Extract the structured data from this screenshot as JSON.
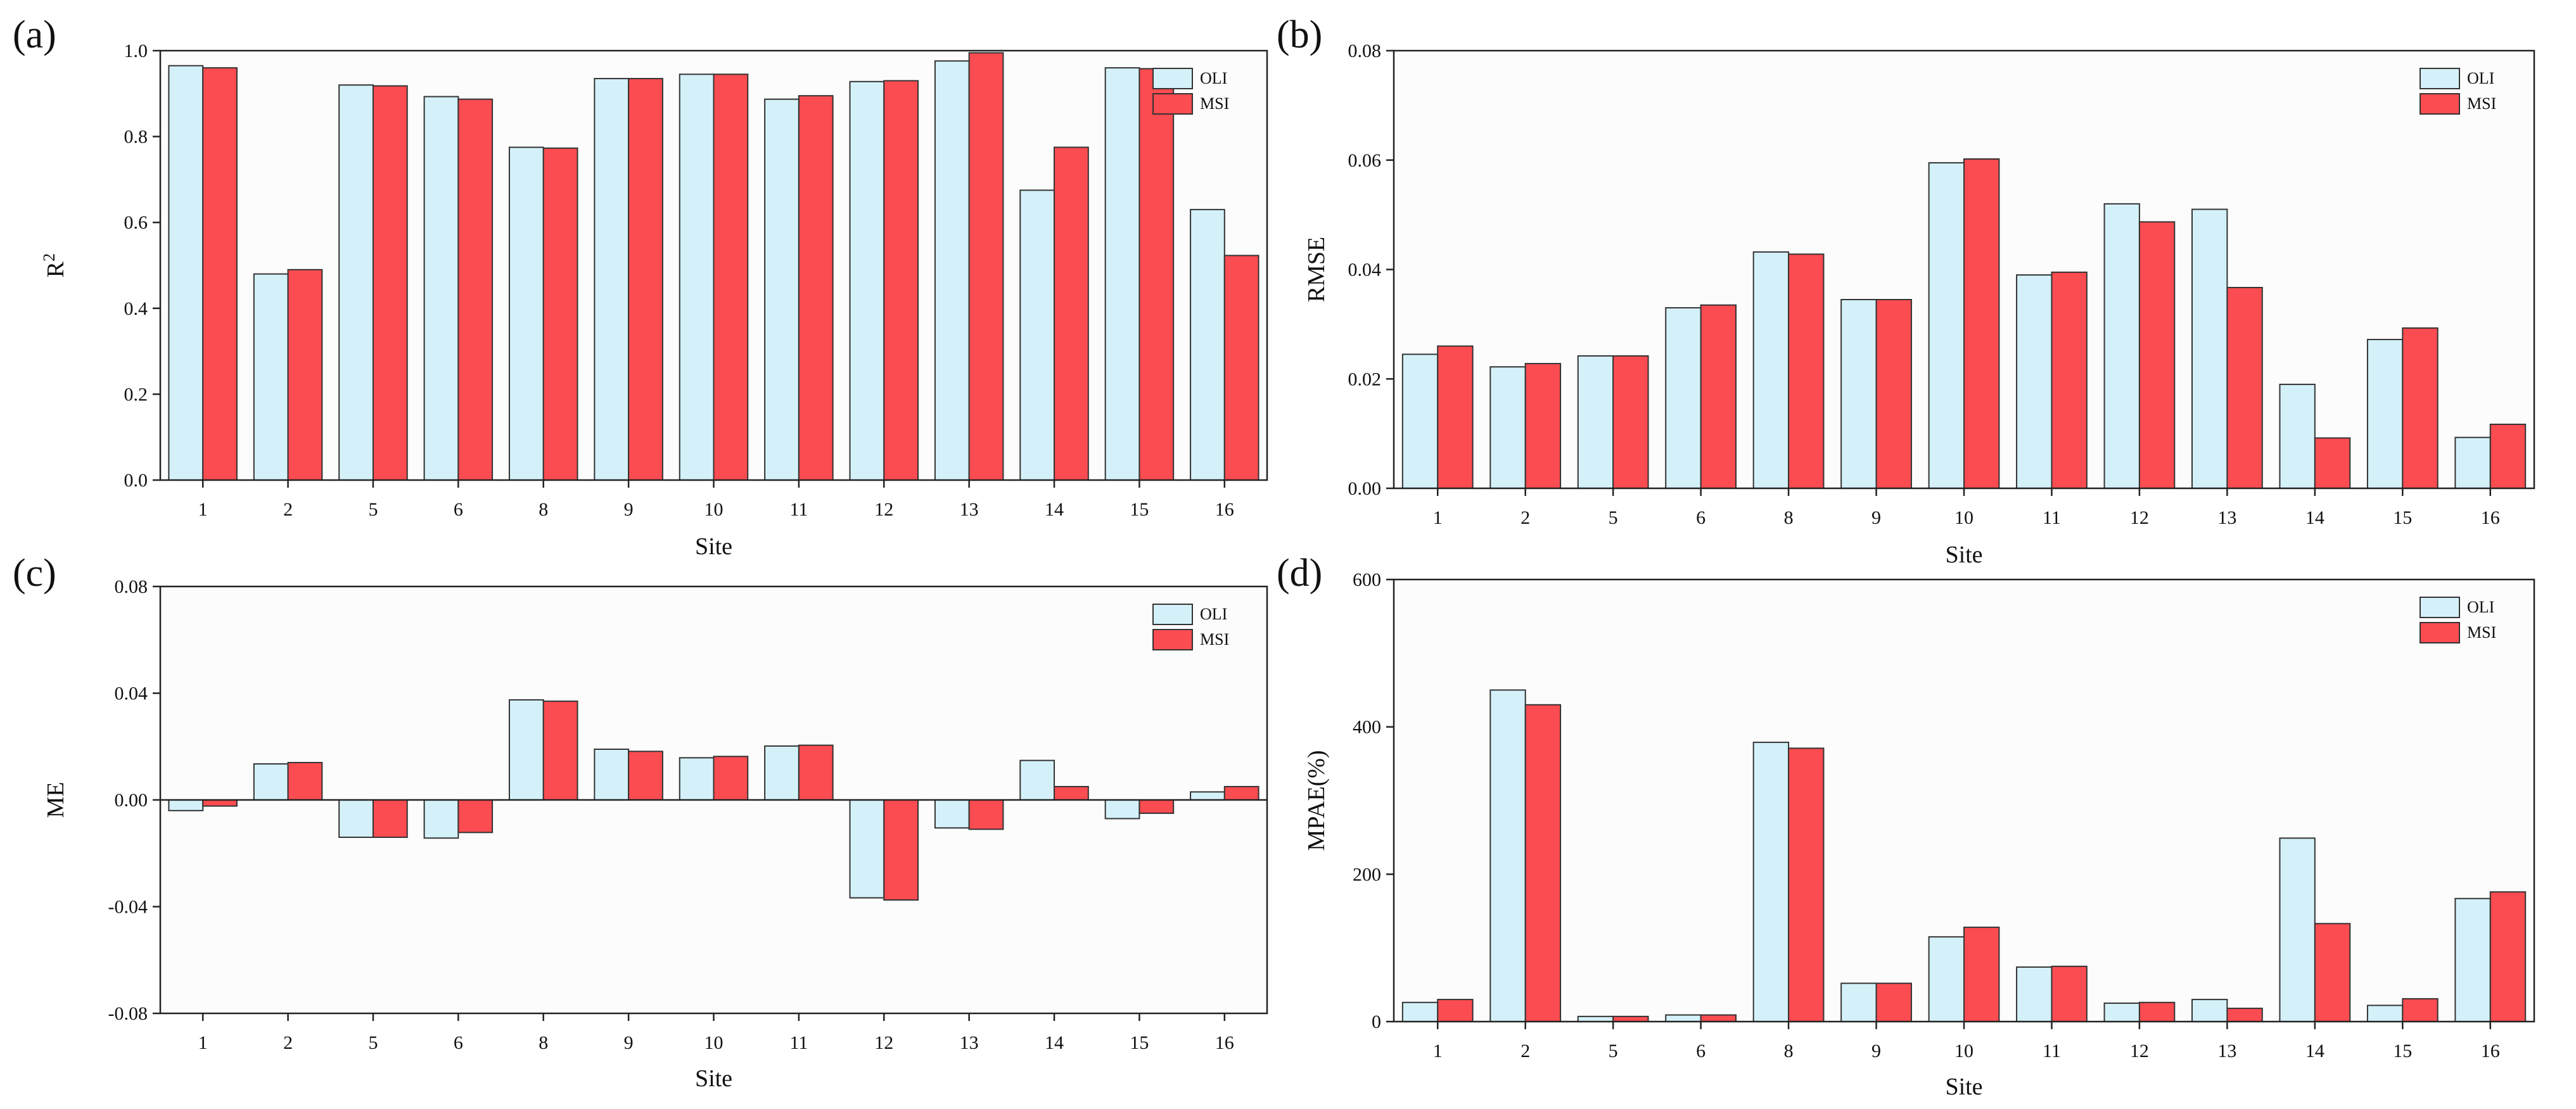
{
  "colors": {
    "oli": "#d4f1f9",
    "msi": "#fb4c51",
    "plot_bg": "#fcfcfc"
  },
  "chart_data": [
    {
      "id": "a",
      "panel_label": "(a)",
      "type": "bar",
      "xlabel": "Site",
      "ylabel": "R",
      "ylabel_sup": "2",
      "ylim": [
        0,
        1.0
      ],
      "yticks": [
        "0.0",
        "0.2",
        "0.4",
        "0.6",
        "0.8",
        "1.0"
      ],
      "ytick_values": [
        0,
        0.2,
        0.4,
        0.6,
        0.8,
        1.0
      ],
      "legend_position": "top-right",
      "categories": [
        "1",
        "2",
        "5",
        "6",
        "8",
        "9",
        "10",
        "11",
        "12",
        "13",
        "14",
        "15",
        "16"
      ],
      "series": [
        {
          "name": "OLI",
          "values": [
            0.965,
            0.48,
            0.92,
            0.893,
            0.775,
            0.935,
            0.945,
            0.887,
            0.928,
            0.976,
            0.675,
            0.96,
            0.63
          ]
        },
        {
          "name": "MSI",
          "values": [
            0.96,
            0.49,
            0.918,
            0.887,
            0.773,
            0.935,
            0.945,
            0.895,
            0.93,
            0.995,
            0.775,
            0.958,
            0.523
          ]
        }
      ]
    },
    {
      "id": "b",
      "panel_label": "(b)",
      "type": "bar",
      "xlabel": "Site",
      "ylabel": "RMSE",
      "ylim": [
        0,
        0.08
      ],
      "yticks": [
        "0.00",
        "0.02",
        "0.04",
        "0.06",
        "0.08"
      ],
      "ytick_values": [
        0,
        0.02,
        0.04,
        0.06,
        0.08
      ],
      "legend_position": "top-right",
      "categories": [
        "1",
        "2",
        "5",
        "6",
        "8",
        "9",
        "10",
        "11",
        "12",
        "13",
        "14",
        "15",
        "16"
      ],
      "series": [
        {
          "name": "OLI",
          "values": [
            0.0245,
            0.0222,
            0.0242,
            0.033,
            0.0432,
            0.0345,
            0.0595,
            0.039,
            0.052,
            0.051,
            0.019,
            0.0272,
            0.0093
          ]
        },
        {
          "name": "MSI",
          "values": [
            0.026,
            0.0228,
            0.0242,
            0.0335,
            0.0428,
            0.0345,
            0.0602,
            0.0395,
            0.0487,
            0.0367,
            0.0092,
            0.0293,
            0.0117
          ]
        }
      ]
    },
    {
      "id": "c",
      "panel_label": "(c)",
      "type": "bar",
      "xlabel": "Site",
      "ylabel": "ME",
      "ylim": [
        -0.08,
        0.08
      ],
      "yticks": [
        "-0.08",
        "-0.04",
        "0.00",
        "0.04",
        "0.08"
      ],
      "ytick_values": [
        -0.08,
        -0.04,
        0,
        0.04,
        0.08
      ],
      "legend_position": "top-right",
      "categories": [
        "1",
        "2",
        "5",
        "6",
        "8",
        "9",
        "10",
        "11",
        "12",
        "13",
        "14",
        "15",
        "16"
      ],
      "series": [
        {
          "name": "OLI",
          "values": [
            -0.004,
            0.0135,
            -0.014,
            -0.0143,
            0.0375,
            0.019,
            0.0158,
            0.0202,
            -0.0367,
            -0.0105,
            0.0148,
            -0.007,
            0.003
          ]
        },
        {
          "name": "MSI",
          "values": [
            -0.0023,
            0.014,
            -0.014,
            -0.0122,
            0.037,
            0.0182,
            0.0163,
            0.0205,
            -0.0375,
            -0.011,
            0.005,
            -0.005,
            0.005
          ]
        }
      ]
    },
    {
      "id": "d",
      "panel_label": "(d)",
      "type": "bar",
      "xlabel": "Site",
      "ylabel": "MPAE(%)",
      "ylim": [
        0,
        600
      ],
      "yticks": [
        "0",
        "200",
        "400",
        "600"
      ],
      "ytick_values": [
        0,
        200,
        400,
        600
      ],
      "legend_position": "top-right",
      "categories": [
        "1",
        "2",
        "5",
        "6",
        "8",
        "9",
        "10",
        "11",
        "12",
        "13",
        "14",
        "15",
        "16"
      ],
      "series": [
        {
          "name": "OLI",
          "values": [
            26,
            450,
            7,
            9,
            379,
            52,
            115,
            74,
            25,
            30,
            249,
            22,
            167
          ]
        },
        {
          "name": "MSI",
          "values": [
            30,
            430,
            7,
            9,
            371,
            52,
            128,
            75,
            26,
            18,
            133,
            31,
            176
          ]
        }
      ]
    }
  ]
}
